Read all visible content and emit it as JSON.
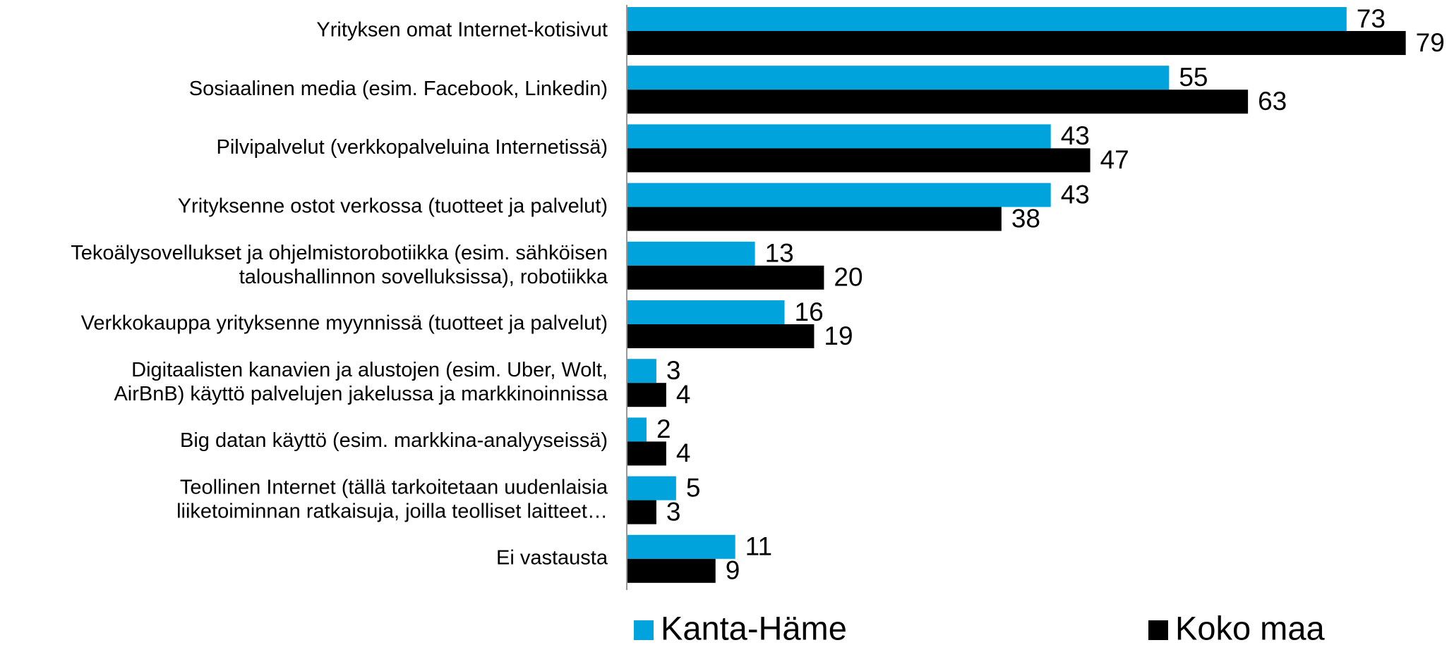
{
  "chart_data": {
    "type": "bar",
    "orientation": "horizontal",
    "categories": [
      "Yrityksen omat Internet-kotisivut",
      "Sosiaalinen media (esim. Facebook, Linkedin)",
      "Pilvipalvelut  (verkkopalveluina Internetissä)",
      "Yrityksenne ostot verkossa (tuotteet ja palvelut)",
      "Tekoälysovellukset ja ohjelmistorobotiikka (esim. sähköisen\ntaloushallinnon sovelluksissa), robotiikka",
      "Verkkokauppa yrityksenne myynnissä (tuotteet ja palvelut)",
      "Digitaalisten kanavien ja alustojen (esim. Uber, Wolt,\nAirBnB) käyttö palvelujen jakelussa ja markkinoinnissa",
      "Big datan käyttö (esim. markkina-analyyseissä)",
      "Teollinen Internet (tällä tarkoitetaan uudenlaisia\nliiketoiminnan ratkaisuja, joilla teolliset laitteet…",
      "Ei vastausta"
    ],
    "series": [
      {
        "name": "Kanta-Häme",
        "color": "#00a3dc",
        "values": [
          73,
          55,
          43,
          43,
          13,
          16,
          3,
          2,
          5,
          11
        ]
      },
      {
        "name": "Koko maa",
        "color": "#000000",
        "values": [
          79,
          63,
          47,
          38,
          20,
          19,
          4,
          4,
          3,
          9
        ]
      }
    ],
    "xlim": [
      0,
      80
    ]
  }
}
